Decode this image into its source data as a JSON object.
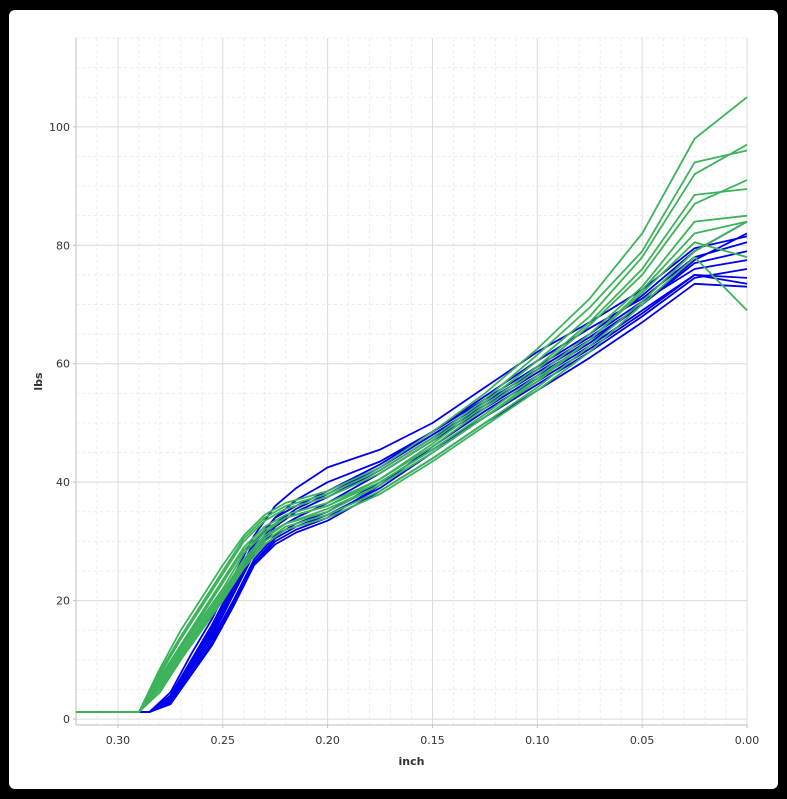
{
  "chart_data": {
    "type": "line",
    "title": "",
    "xlabel": "inch",
    "ylabel": "lbs",
    "x_reversed": true,
    "xlim": [
      0.32,
      0.0
    ],
    "ylim": [
      -1,
      115
    ],
    "x_ticks": [
      0.3,
      0.25,
      0.2,
      0.15,
      0.1,
      0.05,
      0.0
    ],
    "x_tick_labels": [
      "0.30",
      "0.25",
      "0.20",
      "0.15",
      "0.10",
      "0.05",
      "0.00"
    ],
    "y_ticks": [
      0,
      20,
      40,
      60,
      80,
      100
    ],
    "y_tick_labels": [
      "0",
      "20",
      "40",
      "60",
      "80",
      "100"
    ],
    "grid": true,
    "legend": "none",
    "series_colors": {
      "blue_group": "#0000ee",
      "green_group": "#3cb35a"
    },
    "series": [
      {
        "group": "blue_group",
        "x": [
          0.32,
          0.285,
          0.275,
          0.265,
          0.255,
          0.245,
          0.235,
          0.225,
          0.215,
          0.2,
          0.175,
          0.15,
          0.125,
          0.1,
          0.075,
          0.05,
          0.025,
          0.0
        ],
        "y": [
          1.2,
          1.2,
          3.0,
          9.0,
          14.0,
          21.0,
          28.0,
          32.0,
          34.0,
          36.5,
          41.5,
          47.0,
          52.5,
          58.0,
          63.5,
          70.0,
          77.5,
          82.0
        ]
      },
      {
        "group": "blue_group",
        "x": [
          0.32,
          0.285,
          0.275,
          0.265,
          0.255,
          0.245,
          0.235,
          0.225,
          0.215,
          0.2,
          0.175,
          0.15,
          0.125,
          0.1,
          0.075,
          0.05,
          0.025,
          0.0
        ],
        "y": [
          1.2,
          1.2,
          4.0,
          10.0,
          16.0,
          23.0,
          30.0,
          34.0,
          36.0,
          38.5,
          43.0,
          48.5,
          54.0,
          59.5,
          65.0,
          71.5,
          79.0,
          84.0
        ]
      },
      {
        "group": "blue_group",
        "x": [
          0.32,
          0.285,
          0.275,
          0.265,
          0.255,
          0.245,
          0.235,
          0.225,
          0.215,
          0.2,
          0.175,
          0.15,
          0.125,
          0.1,
          0.075,
          0.05,
          0.025,
          0.0
        ],
        "y": [
          1.2,
          1.2,
          2.5,
          7.5,
          12.5,
          19.0,
          26.0,
          29.5,
          31.5,
          33.5,
          38.5,
          44.0,
          50.0,
          55.5,
          61.0,
          67.0,
          73.5,
          73.0
        ]
      },
      {
        "group": "blue_group",
        "x": [
          0.32,
          0.285,
          0.275,
          0.265,
          0.255,
          0.245,
          0.235,
          0.225,
          0.215,
          0.2,
          0.175,
          0.15,
          0.125,
          0.1,
          0.075,
          0.05,
          0.025,
          0.0
        ],
        "y": [
          1.2,
          1.2,
          3.5,
          9.5,
          15.0,
          22.0,
          29.0,
          33.0,
          35.5,
          38.0,
          42.5,
          48.0,
          53.5,
          59.0,
          64.5,
          70.5,
          76.0,
          77.5
        ]
      },
      {
        "group": "blue_group",
        "x": [
          0.32,
          0.285,
          0.275,
          0.265,
          0.255,
          0.245,
          0.235,
          0.225,
          0.215,
          0.2,
          0.175,
          0.15,
          0.125,
          0.1,
          0.075,
          0.05,
          0.025,
          0.0
        ],
        "y": [
          1.2,
          1.2,
          3.0,
          8.5,
          13.5,
          20.0,
          27.0,
          31.0,
          33.0,
          35.0,
          40.0,
          45.5,
          51.0,
          57.0,
          62.5,
          68.5,
          75.0,
          74.5
        ]
      },
      {
        "group": "blue_group",
        "x": [
          0.32,
          0.285,
          0.275,
          0.265,
          0.255,
          0.245,
          0.235,
          0.225,
          0.215,
          0.2,
          0.175,
          0.15,
          0.125,
          0.1,
          0.075,
          0.05,
          0.025,
          0.0
        ],
        "y": [
          1.2,
          1.2,
          4.5,
          11.0,
          17.0,
          24.0,
          31.0,
          36.0,
          39.0,
          42.5,
          45.5,
          50.0,
          56.0,
          62.0,
          67.0,
          72.5,
          79.5,
          81.5
        ]
      },
      {
        "group": "blue_group",
        "x": [
          0.32,
          0.285,
          0.275,
          0.265,
          0.255,
          0.245,
          0.235,
          0.225,
          0.215,
          0.2,
          0.175,
          0.15,
          0.125,
          0.1,
          0.075,
          0.05,
          0.025,
          0.0
        ],
        "y": [
          1.2,
          1.2,
          3.8,
          9.8,
          15.5,
          22.5,
          29.5,
          34.0,
          37.0,
          40.0,
          43.5,
          48.5,
          54.5,
          60.5,
          66.0,
          71.0,
          78.0,
          80.5
        ]
      },
      {
        "group": "blue_group",
        "x": [
          0.32,
          0.285,
          0.275,
          0.265,
          0.255,
          0.245,
          0.235,
          0.225,
          0.215,
          0.2,
          0.175,
          0.15,
          0.125,
          0.1,
          0.075,
          0.05,
          0.025,
          0.0
        ],
        "y": [
          1.2,
          1.2,
          2.8,
          8.0,
          13.0,
          19.5,
          26.5,
          30.5,
          32.5,
          34.5,
          39.0,
          45.0,
          51.0,
          56.5,
          62.0,
          68.0,
          74.5,
          76.0
        ]
      },
      {
        "group": "blue_group",
        "x": [
          0.32,
          0.285,
          0.275,
          0.265,
          0.255,
          0.245,
          0.235,
          0.225,
          0.215,
          0.2,
          0.175,
          0.15,
          0.125,
          0.1,
          0.075,
          0.05,
          0.025,
          0.0
        ],
        "y": [
          1.2,
          1.2,
          3.2,
          9.0,
          14.5,
          21.5,
          28.5,
          32.5,
          35.0,
          37.5,
          42.0,
          47.5,
          53.0,
          58.5,
          64.0,
          70.0,
          77.0,
          79.0
        ]
      },
      {
        "group": "blue_group",
        "x": [
          0.32,
          0.285,
          0.275,
          0.265,
          0.255,
          0.245,
          0.235,
          0.225,
          0.215,
          0.2,
          0.175,
          0.15,
          0.125,
          0.1,
          0.075,
          0.05,
          0.025,
          0.0
        ],
        "y": [
          1.2,
          1.2,
          2.6,
          7.8,
          12.8,
          19.2,
          26.2,
          30.0,
          32.0,
          34.0,
          39.5,
          46.0,
          52.0,
          57.5,
          63.0,
          69.0,
          75.0,
          73.5
        ]
      },
      {
        "group": "green_group",
        "x": [
          0.32,
          0.29,
          0.28,
          0.27,
          0.26,
          0.25,
          0.24,
          0.23,
          0.22,
          0.2,
          0.175,
          0.15,
          0.125,
          0.1,
          0.075,
          0.05,
          0.025,
          0.0
        ],
        "y": [
          1.2,
          1.2,
          6.5,
          12.0,
          17.0,
          22.0,
          28.0,
          31.5,
          34.0,
          36.0,
          40.0,
          45.5,
          51.5,
          58.0,
          65.0,
          73.0,
          84.0,
          85.0
        ]
      },
      {
        "group": "green_group",
        "x": [
          0.32,
          0.29,
          0.28,
          0.27,
          0.26,
          0.25,
          0.24,
          0.23,
          0.22,
          0.2,
          0.175,
          0.15,
          0.125,
          0.1,
          0.075,
          0.05,
          0.025,
          0.0
        ],
        "y": [
          1.2,
          1.2,
          7.5,
          13.5,
          19.0,
          24.5,
          30.0,
          33.5,
          35.5,
          37.5,
          41.5,
          47.0,
          53.5,
          60.5,
          68.0,
          78.0,
          92.0,
          97.0
        ]
      },
      {
        "group": "green_group",
        "x": [
          0.32,
          0.29,
          0.28,
          0.27,
          0.26,
          0.25,
          0.24,
          0.23,
          0.22,
          0.2,
          0.175,
          0.15,
          0.125,
          0.1,
          0.075,
          0.05,
          0.025,
          0.0
        ],
        "y": [
          1.2,
          1.2,
          5.0,
          10.5,
          15.5,
          20.5,
          26.0,
          30.0,
          32.5,
          34.5,
          38.5,
          44.0,
          50.0,
          56.0,
          63.0,
          70.5,
          79.0,
          84.0
        ]
      },
      {
        "group": "green_group",
        "x": [
          0.32,
          0.29,
          0.28,
          0.27,
          0.26,
          0.25,
          0.24,
          0.23,
          0.22,
          0.2,
          0.175,
          0.15,
          0.125,
          0.1,
          0.075,
          0.05,
          0.025,
          0.0
        ],
        "y": [
          1.2,
          1.2,
          8.5,
          15.0,
          20.5,
          26.0,
          31.0,
          34.5,
          36.5,
          38.5,
          42.5,
          48.5,
          55.0,
          62.5,
          71.0,
          82.0,
          98.0,
          105.0
        ]
      },
      {
        "group": "green_group",
        "x": [
          0.32,
          0.29,
          0.28,
          0.27,
          0.26,
          0.25,
          0.24,
          0.23,
          0.22,
          0.2,
          0.175,
          0.15,
          0.125,
          0.1,
          0.075,
          0.05,
          0.025,
          0.0
        ],
        "y": [
          1.2,
          1.2,
          6.0,
          11.5,
          16.5,
          21.5,
          27.0,
          31.0,
          33.0,
          35.0,
          39.5,
          45.0,
          51.0,
          57.5,
          64.0,
          72.0,
          80.5,
          78.0
        ]
      },
      {
        "group": "green_group",
        "x": [
          0.32,
          0.29,
          0.28,
          0.27,
          0.26,
          0.25,
          0.24,
          0.23,
          0.22,
          0.2,
          0.175,
          0.15,
          0.125,
          0.1,
          0.075,
          0.05,
          0.025,
          0.0
        ],
        "y": [
          1.2,
          1.2,
          7.0,
          12.5,
          18.0,
          23.5,
          29.0,
          32.5,
          34.5,
          36.5,
          40.5,
          46.0,
          52.5,
          59.0,
          66.5,
          75.0,
          87.0,
          91.0
        ]
      },
      {
        "group": "green_group",
        "x": [
          0.32,
          0.29,
          0.28,
          0.27,
          0.26,
          0.25,
          0.24,
          0.23,
          0.22,
          0.2,
          0.175,
          0.15,
          0.125,
          0.1,
          0.075,
          0.05,
          0.025,
          0.0
        ],
        "y": [
          1.2,
          1.2,
          4.5,
          10.0,
          15.0,
          20.0,
          25.5,
          29.5,
          32.0,
          34.0,
          38.0,
          43.5,
          49.5,
          55.5,
          62.0,
          70.0,
          78.0,
          69.0
        ]
      },
      {
        "group": "green_group",
        "x": [
          0.32,
          0.29,
          0.28,
          0.27,
          0.26,
          0.25,
          0.24,
          0.23,
          0.22,
          0.2,
          0.175,
          0.15,
          0.125,
          0.1,
          0.075,
          0.05,
          0.025,
          0.0
        ],
        "y": [
          1.2,
          1.2,
          8.0,
          14.0,
          19.5,
          25.0,
          30.5,
          34.0,
          36.0,
          38.0,
          42.0,
          47.5,
          54.0,
          61.5,
          69.5,
          79.0,
          94.0,
          96.0
        ]
      },
      {
        "group": "green_group",
        "x": [
          0.32,
          0.29,
          0.28,
          0.27,
          0.26,
          0.25,
          0.24,
          0.23,
          0.22,
          0.2,
          0.175,
          0.15,
          0.125,
          0.1,
          0.075,
          0.05,
          0.025,
          0.0
        ],
        "y": [
          1.2,
          1.2,
          5.5,
          11.0,
          16.0,
          21.0,
          26.5,
          30.5,
          33.0,
          35.5,
          39.5,
          45.0,
          51.0,
          57.0,
          64.0,
          72.5,
          82.0,
          84.0
        ]
      },
      {
        "group": "green_group",
        "x": [
          0.32,
          0.29,
          0.28,
          0.27,
          0.26,
          0.25,
          0.24,
          0.23,
          0.22,
          0.2,
          0.175,
          0.15,
          0.125,
          0.1,
          0.075,
          0.05,
          0.025,
          0.0
        ],
        "y": [
          1.2,
          1.2,
          6.8,
          12.2,
          17.5,
          23.0,
          28.5,
          32.0,
          34.0,
          36.0,
          40.5,
          46.5,
          53.0,
          59.5,
          67.0,
          76.0,
          88.5,
          89.5
        ]
      }
    ]
  }
}
